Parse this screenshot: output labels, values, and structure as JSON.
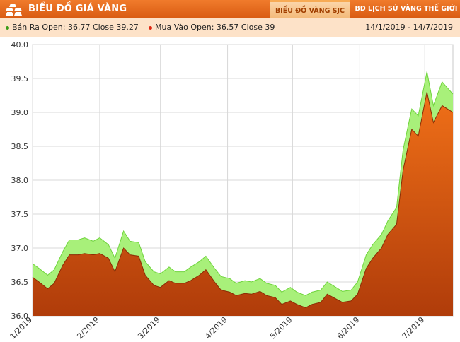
{
  "header": {
    "brand": "BIỂU ĐỒ GIÁ VÀNG",
    "logo_icon": "gold-bars-icon",
    "tabs": [
      {
        "label": "BIỂU ĐỒ VÀNG SJC",
        "active": true
      },
      {
        "label": "BĐ LỊCH SỬ VÀNG THẾ GIỚI",
        "active": false
      }
    ]
  },
  "legend": {
    "sell": "Bán Ra Open: 36.77 Close 39.27",
    "buy": "Mua Vào Open: 36.57 Close 39",
    "sell_color": "#3a9b18",
    "buy_color": "#e02712"
  },
  "date_range": "14/1/2019 - 14/7/2019",
  "chart_data": {
    "type": "area",
    "title": "",
    "xlabel": "",
    "ylabel": "",
    "ylim": [
      36.0,
      40.0
    ],
    "y_ticks": [
      "36.0",
      "36.5",
      "37.0",
      "37.5",
      "38.0",
      "38.5",
      "39.0",
      "39.5",
      "40.0"
    ],
    "x_tick_labels": [
      "1/2019",
      "2/2019",
      "3/2019",
      "4/2019",
      "5/2019",
      "6/2019",
      "7/2019"
    ],
    "x_tick_dates": [
      "2019-01-01",
      "2019-02-01",
      "2019-03-01",
      "2019-04-01",
      "2019-05-01",
      "2019-06-01",
      "2019-07-01"
    ],
    "xlim": [
      "2019-01-01",
      "2019-07-14"
    ],
    "grid": true,
    "colors": {
      "sell_fill": "#a8f07a",
      "sell_line": "#6fd43c",
      "buy_fill_top": "#f07018",
      "buy_fill_bottom": "#b03c0a",
      "buy_line": "#8a2c05"
    },
    "series": [
      {
        "name": "Bán Ra",
        "x": [
          "2019-01-01",
          "2019-01-04",
          "2019-01-08",
          "2019-01-11",
          "2019-01-15",
          "2019-01-18",
          "2019-01-22",
          "2019-01-25",
          "2019-01-29",
          "2019-02-01",
          "2019-02-05",
          "2019-02-08",
          "2019-02-12",
          "2019-02-15",
          "2019-02-19",
          "2019-02-22",
          "2019-02-26",
          "2019-03-01",
          "2019-03-05",
          "2019-03-08",
          "2019-03-12",
          "2019-03-15",
          "2019-03-19",
          "2019-03-22",
          "2019-03-26",
          "2019-03-29",
          "2019-04-02",
          "2019-04-05",
          "2019-04-09",
          "2019-04-12",
          "2019-04-16",
          "2019-04-19",
          "2019-04-23",
          "2019-04-26",
          "2019-04-30",
          "2019-05-03",
          "2019-05-07",
          "2019-05-10",
          "2019-05-14",
          "2019-05-17",
          "2019-05-21",
          "2019-05-24",
          "2019-05-28",
          "2019-05-31",
          "2019-06-04",
          "2019-06-07",
          "2019-06-11",
          "2019-06-14",
          "2019-06-18",
          "2019-06-21",
          "2019-06-25",
          "2019-06-28",
          "2019-07-02",
          "2019-07-05",
          "2019-07-09",
          "2019-07-14"
        ],
        "values": [
          36.77,
          36.7,
          36.6,
          36.68,
          36.95,
          37.12,
          37.12,
          37.15,
          37.1,
          37.15,
          37.05,
          36.85,
          37.25,
          37.1,
          37.08,
          36.8,
          36.65,
          36.62,
          36.72,
          36.65,
          36.65,
          36.72,
          36.8,
          36.88,
          36.7,
          36.58,
          36.55,
          36.48,
          36.52,
          36.5,
          36.55,
          36.48,
          36.45,
          36.35,
          36.42,
          36.35,
          36.3,
          36.35,
          36.38,
          36.5,
          36.42,
          36.36,
          36.38,
          36.5,
          36.9,
          37.05,
          37.2,
          37.4,
          37.6,
          38.45,
          39.05,
          38.95,
          39.6,
          39.1,
          39.45,
          39.27
        ]
      },
      {
        "name": "Mua Vào",
        "x": [
          "2019-01-01",
          "2019-01-04",
          "2019-01-08",
          "2019-01-11",
          "2019-01-15",
          "2019-01-18",
          "2019-01-22",
          "2019-01-25",
          "2019-01-29",
          "2019-02-01",
          "2019-02-05",
          "2019-02-08",
          "2019-02-12",
          "2019-02-15",
          "2019-02-19",
          "2019-02-22",
          "2019-02-26",
          "2019-03-01",
          "2019-03-05",
          "2019-03-08",
          "2019-03-12",
          "2019-03-15",
          "2019-03-19",
          "2019-03-22",
          "2019-03-26",
          "2019-03-29",
          "2019-04-02",
          "2019-04-05",
          "2019-04-09",
          "2019-04-12",
          "2019-04-16",
          "2019-04-19",
          "2019-04-23",
          "2019-04-26",
          "2019-04-30",
          "2019-05-03",
          "2019-05-07",
          "2019-05-10",
          "2019-05-14",
          "2019-05-17",
          "2019-05-21",
          "2019-05-24",
          "2019-05-28",
          "2019-05-31",
          "2019-06-04",
          "2019-06-07",
          "2019-06-11",
          "2019-06-14",
          "2019-06-18",
          "2019-06-21",
          "2019-06-25",
          "2019-06-28",
          "2019-07-02",
          "2019-07-05",
          "2019-07-09",
          "2019-07-14"
        ],
        "values": [
          36.57,
          36.5,
          36.4,
          36.48,
          36.75,
          36.9,
          36.9,
          36.92,
          36.9,
          36.92,
          36.85,
          36.65,
          37.0,
          36.9,
          36.88,
          36.6,
          36.45,
          36.42,
          36.52,
          36.48,
          36.48,
          36.52,
          36.6,
          36.68,
          36.5,
          36.38,
          36.35,
          36.3,
          36.33,
          36.32,
          36.36,
          36.3,
          36.27,
          36.17,
          36.22,
          36.17,
          36.12,
          36.17,
          36.2,
          36.32,
          36.25,
          36.2,
          36.22,
          36.32,
          36.7,
          36.85,
          37.0,
          37.2,
          37.35,
          38.15,
          38.75,
          38.65,
          39.3,
          38.85,
          39.1,
          39.0
        ]
      }
    ]
  }
}
